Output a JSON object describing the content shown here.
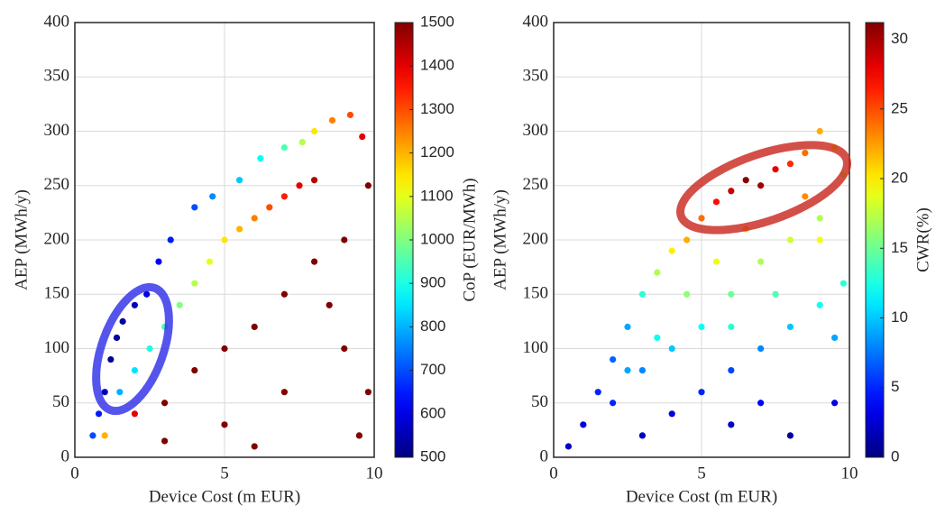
{
  "chart_data": [
    {
      "type": "scatter",
      "xlabel": "Device Cost (m EUR)",
      "ylabel": "AEP (MWh/y)",
      "xlim": [
        0,
        10
      ],
      "ylim": [
        0,
        400
      ],
      "xticks": [
        0,
        5,
        10
      ],
      "yticks": [
        0,
        50,
        100,
        150,
        200,
        250,
        300,
        350,
        400
      ],
      "grid": true,
      "colormap": "jet",
      "colorbar": {
        "label": "CoP (EUR/MWh)",
        "clim": [
          500,
          1500
        ],
        "ticks": [
          500,
          600,
          700,
          800,
          900,
          1000,
          1100,
          1200,
          1300,
          1400,
          1500
        ]
      },
      "x": [
        0.6,
        0.8,
        1,
        1.2,
        1.4,
        1.6,
        2,
        2.4,
        2.8,
        3.2,
        4,
        4.6,
        5.5,
        6.2,
        7,
        7.6,
        8,
        8.6,
        9.2,
        9.6,
        1.5,
        2,
        2.5,
        3,
        3.5,
        4,
        4.5,
        5,
        5.5,
        6,
        6.5,
        7,
        7.5,
        8,
        1,
        2,
        3,
        4,
        5,
        6,
        7,
        8,
        9,
        9.8,
        9,
        7,
        5,
        9.5,
        6,
        3,
        8.5,
        9.8
      ],
      "y": [
        20,
        40,
        60,
        90,
        110,
        125,
        140,
        150,
        180,
        200,
        230,
        240,
        255,
        275,
        285,
        290,
        300,
        310,
        315,
        295,
        60,
        80,
        100,
        120,
        140,
        160,
        180,
        200,
        210,
        220,
        230,
        240,
        250,
        255,
        20,
        40,
        50,
        80,
        100,
        120,
        150,
        180,
        200,
        250,
        100,
        60,
        30,
        20,
        10,
        15,
        140,
        60
      ],
      "c": [
        700,
        650,
        560,
        520,
        530,
        540,
        560,
        600,
        620,
        650,
        700,
        760,
        820,
        880,
        950,
        1050,
        1150,
        1250,
        1300,
        1400,
        800,
        850,
        900,
        950,
        1000,
        1050,
        1100,
        1150,
        1200,
        1250,
        1300,
        1350,
        1400,
        1450,
        1200,
        1400,
        1500,
        1500,
        1500,
        1500,
        1500,
        1500,
        1500,
        1500,
        1500,
        1500,
        1500,
        1500,
        1500,
        1500,
        1500,
        1500
      ]
    },
    {
      "type": "scatter",
      "xlabel": "Device Cost (m EUR)",
      "ylabel": "AEP (MWh/y)",
      "xlim": [
        0,
        10
      ],
      "ylim": [
        0,
        400
      ],
      "xticks": [
        0,
        5,
        10
      ],
      "yticks": [
        0,
        50,
        100,
        150,
        200,
        250,
        300,
        350,
        400
      ],
      "grid": true,
      "colormap": "jet",
      "colorbar": {
        "label": "CWR(%)",
        "clim": [
          0,
          31.2
        ],
        "ticks": [
          0,
          5,
          10,
          15,
          20,
          25,
          30
        ]
      },
      "x": [
        0.5,
        1,
        1.5,
        2,
        2.5,
        3,
        3.5,
        4,
        4.5,
        5,
        5.5,
        6,
        6.5,
        7,
        7.5,
        8,
        8.5,
        9,
        9.5,
        9.8,
        3,
        4,
        5,
        6,
        7,
        8,
        9,
        9.8,
        5,
        6,
        7,
        8,
        9,
        4,
        3,
        2,
        6,
        8,
        9.5,
        7,
        5.5,
        4.5,
        6.5,
        8.5,
        3.5,
        2.5,
        9.5,
        9,
        7.5,
        6
      ],
      "y": [
        10,
        30,
        60,
        90,
        120,
        150,
        170,
        190,
        200,
        220,
        235,
        245,
        255,
        250,
        265,
        270,
        280,
        300,
        285,
        260,
        20,
        40,
        60,
        80,
        100,
        120,
        140,
        160,
        120,
        150,
        180,
        200,
        220,
        100,
        80,
        50,
        30,
        20,
        50,
        50,
        180,
        150,
        210,
        240,
        110,
        80,
        110,
        200,
        150,
        120
      ],
      "c": [
        2,
        3,
        5,
        7,
        9,
        13,
        17,
        20,
        22,
        24,
        27,
        29,
        31,
        30,
        28,
        26,
        24,
        22,
        20,
        18,
        2,
        3,
        5,
        6,
        8,
        10,
        12,
        13,
        12,
        15,
        17,
        18,
        17,
        10,
        8,
        5,
        2,
        1,
        3,
        4,
        19,
        16,
        21,
        23,
        12,
        9,
        9,
        19,
        14,
        13
      ]
    }
  ]
}
